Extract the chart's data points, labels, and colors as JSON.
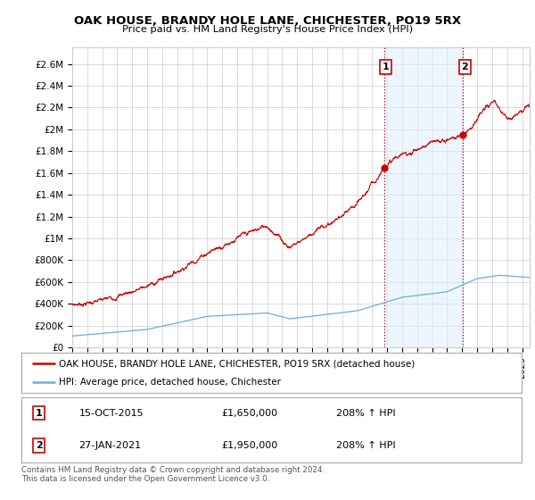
{
  "title": "OAK HOUSE, BRANDY HOLE LANE, CHICHESTER, PO19 5RX",
  "subtitle": "Price paid vs. HM Land Registry's House Price Index (HPI)",
  "ylabel_ticks": [
    "£0",
    "£200K",
    "£400K",
    "£600K",
    "£800K",
    "£1M",
    "£1.2M",
    "£1.4M",
    "£1.6M",
    "£1.8M",
    "£2M",
    "£2.2M",
    "£2.4M",
    "£2.6M"
  ],
  "ytick_values": [
    0,
    200000,
    400000,
    600000,
    800000,
    1000000,
    1200000,
    1400000,
    1600000,
    1800000,
    2000000,
    2200000,
    2400000,
    2600000
  ],
  "ylim": [
    0,
    2750000
  ],
  "xlim_start": 1995.0,
  "xlim_end": 2025.5,
  "sale1_date": 2015.79,
  "sale1_price": 1650000,
  "sale2_date": 2021.07,
  "sale2_price": 1950000,
  "red_line_color": "#cc0000",
  "blue_line_color": "#6baed6",
  "vline_color": "#cc0000",
  "vline_style": ":",
  "background_color": "#ffffff",
  "plot_bg_color": "#ffffff",
  "grid_color": "#cccccc",
  "legend_label_red": "OAK HOUSE, BRANDY HOLE LANE, CHICHESTER, PO19 5RX (detached house)",
  "legend_label_blue": "HPI: Average price, detached house, Chichester",
  "footer_line1": "Contains HM Land Registry data © Crown copyright and database right 2024.",
  "footer_line2": "This data is licensed under the Open Government Licence v3.0.",
  "table_row1": [
    "1",
    "15-OCT-2015",
    "£1,650,000",
    "208% ↑ HPI"
  ],
  "table_row2": [
    "2",
    "27-JAN-2021",
    "£1,950,000",
    "208% ↑ HPI"
  ],
  "span_color": "#ddeeff",
  "span_alpha": 0.5
}
